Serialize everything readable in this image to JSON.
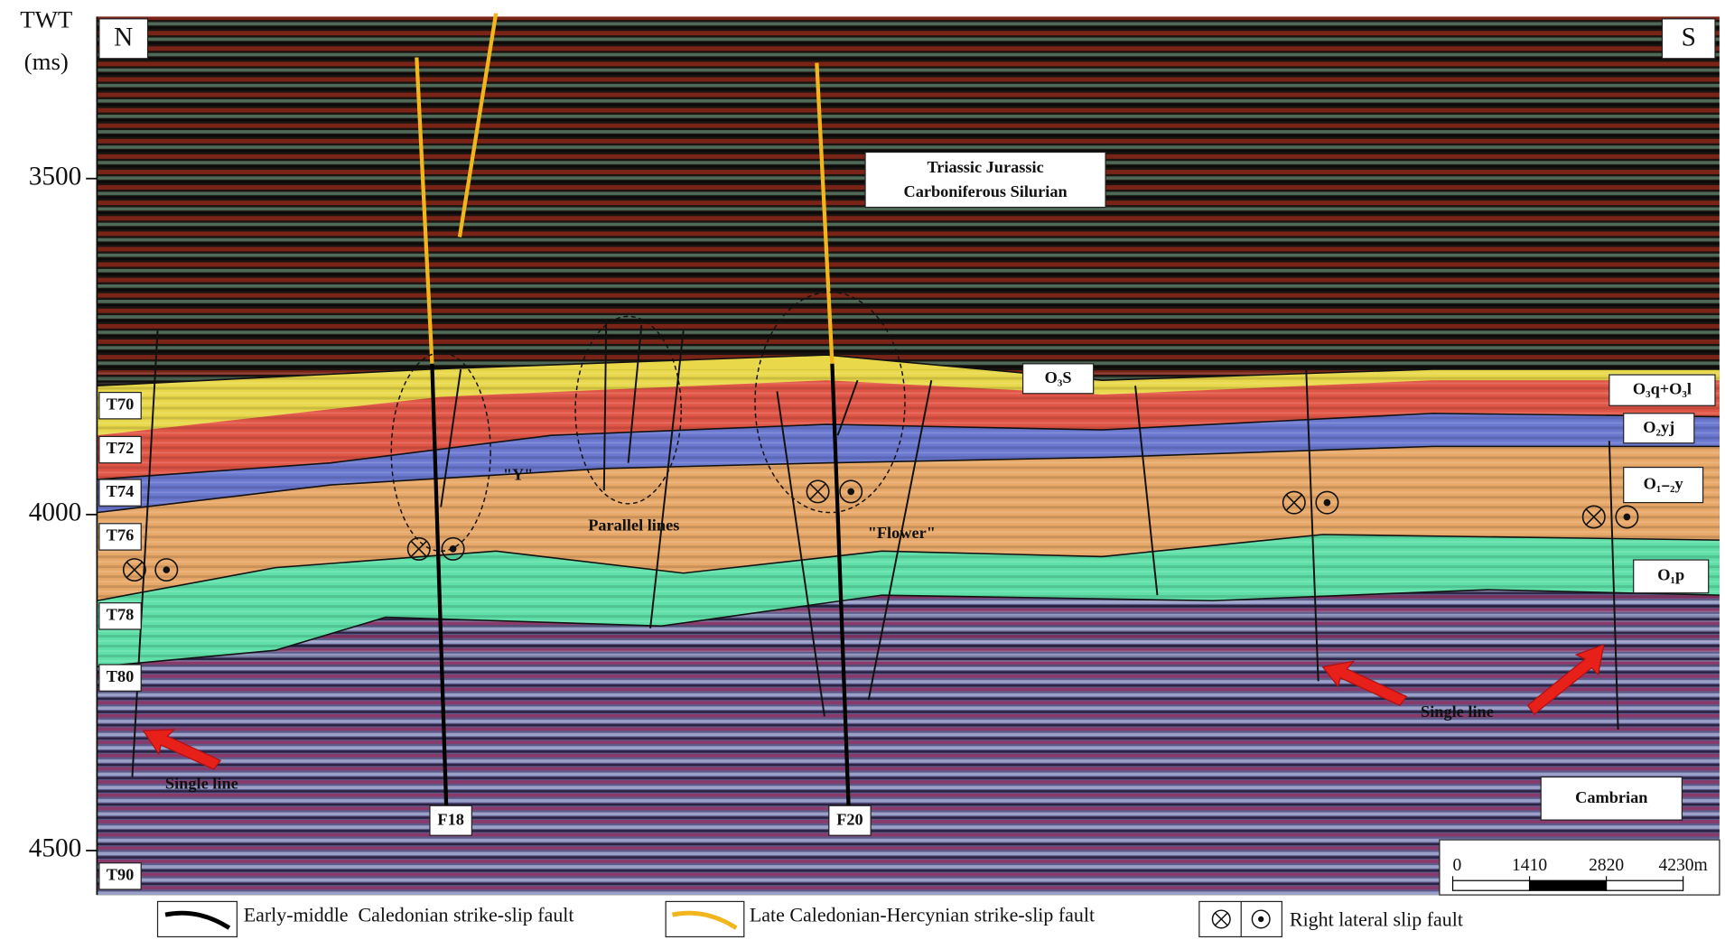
{
  "axis": {
    "title": [
      "TWT",
      "(ms)"
    ],
    "ylim": [
      3259,
      4566
    ],
    "yticks": [
      3500,
      4000,
      4500
    ]
  },
  "compass": {
    "north": "N",
    "south": "S"
  },
  "horizons": [
    "T70",
    "T72",
    "T74",
    "T76",
    "T78",
    "T80",
    "T90"
  ],
  "formations": {
    "upper": [
      "Triassic Jurassic",
      "Carboniferous Silurian"
    ],
    "o3s": "O₃S",
    "o3q_o3l": "O₃q+O₃l",
    "o2yj": "O₂yj",
    "o12y": "O₁₋₂y",
    "o1p": "O₁p",
    "cambrian": "Cambrian"
  },
  "annotations": {
    "y_shape": "\"Y\"",
    "parallel": "Parallel lines",
    "flower": "\"Flower\"",
    "single_line": "Single line"
  },
  "faults": [
    "F18",
    "F20"
  ],
  "scale_bar": {
    "ticks": [
      0,
      1410,
      2820,
      {
        "value": 4230,
        "label": "4230m"
      }
    ]
  },
  "legend": [
    "Early-middle  Caledonian strike-slip fault",
    "Late Caledonian-Hercynian strike-slip fault",
    "Right lateral slip fault"
  ]
}
